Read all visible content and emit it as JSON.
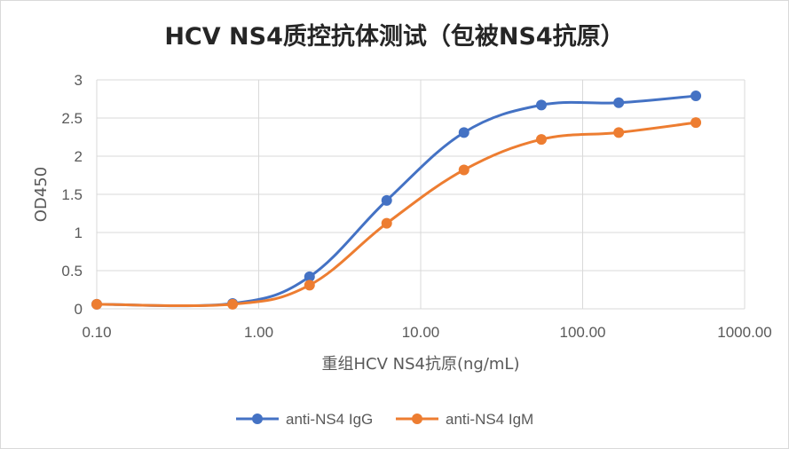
{
  "chart_data": {
    "type": "line",
    "title": "HCV NS4质控抗体测试（包被NS4抗原）",
    "xlabel": "重组HCV NS4抗原(ng/mL)",
    "ylabel": "OD450",
    "x_scale": "log",
    "xlim": [
      0.1,
      1000
    ],
    "ylim": [
      0,
      3
    ],
    "x_ticks": [
      {
        "value": 0.1,
        "label": "0.10"
      },
      {
        "value": 1,
        "label": "1.00"
      },
      {
        "value": 10,
        "label": "10.00"
      },
      {
        "value": 100,
        "label": "100.00"
      },
      {
        "value": 1000,
        "label": "1000.00"
      }
    ],
    "y_ticks": [
      {
        "value": 0,
        "label": "0"
      },
      {
        "value": 0.5,
        "label": "0.5"
      },
      {
        "value": 1,
        "label": "1"
      },
      {
        "value": 1.5,
        "label": "1.5"
      },
      {
        "value": 2,
        "label": "2"
      },
      {
        "value": 2.5,
        "label": "2.5"
      },
      {
        "value": 3,
        "label": "3"
      }
    ],
    "grid": true,
    "legend_position": "bottom",
    "series": [
      {
        "name": "anti-NS4 IgG",
        "color": "#4472c4",
        "x": [
          0.1,
          0.69,
          2.06,
          6.17,
          18.5,
          55.6,
          167,
          500
        ],
        "y": [
          0.06,
          0.07,
          0.42,
          1.42,
          2.31,
          2.67,
          2.7,
          2.79
        ]
      },
      {
        "name": "anti-NS4 IgM",
        "color": "#ed7d31",
        "x": [
          0.1,
          0.69,
          2.06,
          6.17,
          18.5,
          55.6,
          167,
          500
        ],
        "y": [
          0.06,
          0.06,
          0.31,
          1.12,
          1.82,
          2.22,
          2.31,
          2.44
        ]
      }
    ]
  }
}
